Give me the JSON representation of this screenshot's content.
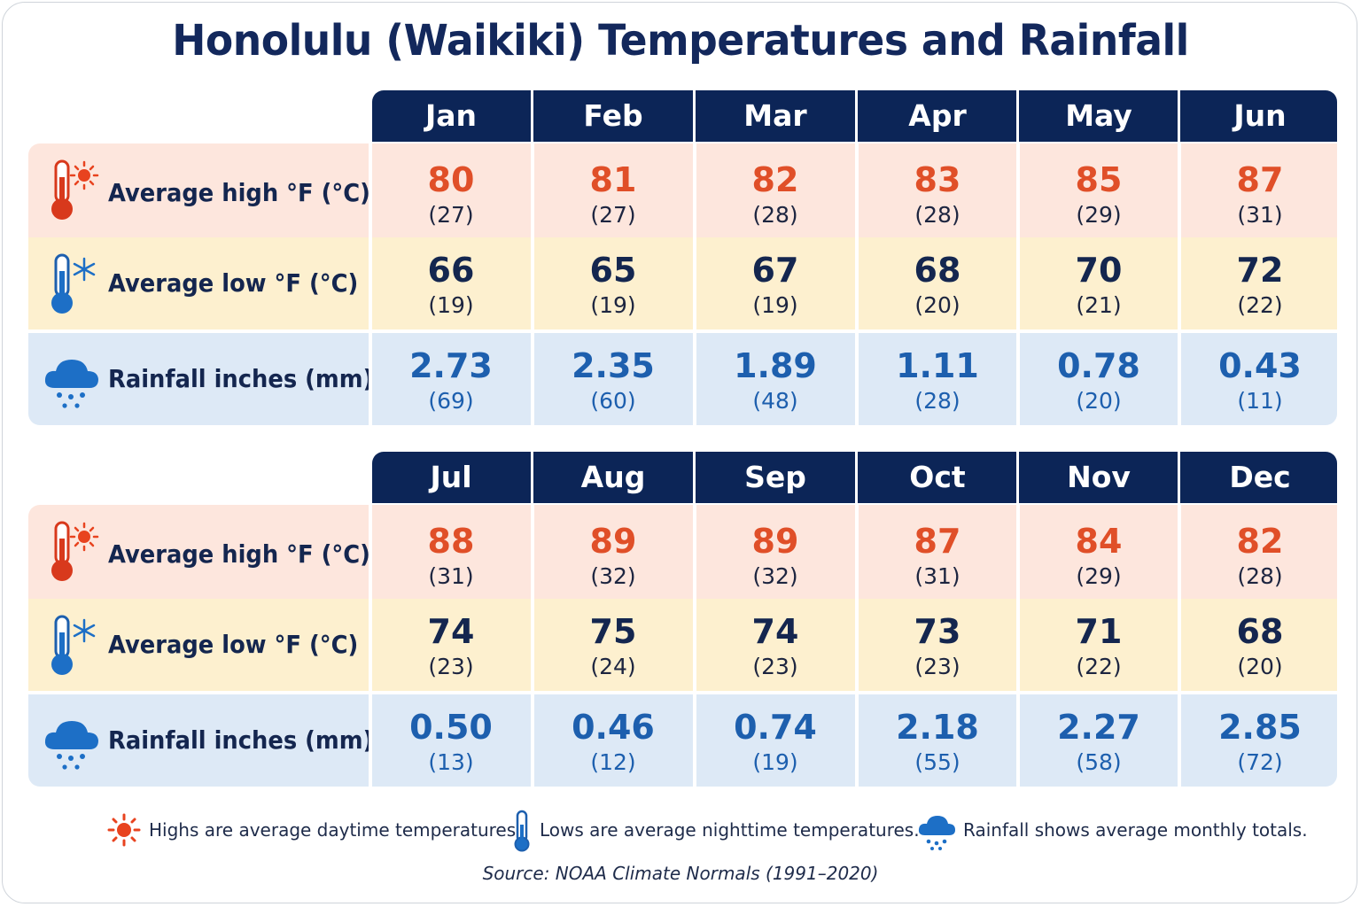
{
  "title": "Honolulu (Waikiki) Temperatures and Rainfall",
  "row_labels": {
    "high": "Average high °F (°C)",
    "low": "Average low °F (°C)",
    "rain": "Rainfall inches (mm)"
  },
  "icons": {
    "high": "thermometer-sun-icon",
    "low": "thermometer-snowflake-icon",
    "rain": "rain-cloud-icon"
  },
  "colors": {
    "header_bg": "#0c2557",
    "high_row": "#fde6dd",
    "low_row": "#fdf0cf",
    "rain_row": "#dde9f6",
    "high_value": "#e04f28",
    "rain_value": "#1d5fae",
    "title": "#13285c"
  },
  "tables": [
    {
      "months": [
        "Jan",
        "Feb",
        "Mar",
        "Apr",
        "May",
        "Jun"
      ],
      "high_f": [
        "80",
        "81",
        "82",
        "83",
        "85",
        "87"
      ],
      "high_c": [
        "(27)",
        "(27)",
        "(28)",
        "(28)",
        "(29)",
        "(31)"
      ],
      "low_f": [
        "66",
        "65",
        "67",
        "68",
        "70",
        "72"
      ],
      "low_c": [
        "(19)",
        "(19)",
        "(19)",
        "(20)",
        "(21)",
        "(22)"
      ],
      "rain_in": [
        "2.73",
        "2.35",
        "1.89",
        "1.11",
        "0.78",
        "0.43"
      ],
      "rain_mm": [
        "(69)",
        "(60)",
        "(48)",
        "(28)",
        "(20)",
        "(11)"
      ]
    },
    {
      "months": [
        "Jul",
        "Aug",
        "Sep",
        "Oct",
        "Nov",
        "Dec"
      ],
      "high_f": [
        "88",
        "89",
        "89",
        "87",
        "84",
        "82"
      ],
      "high_c": [
        "(31)",
        "(32)",
        "(32)",
        "(31)",
        "(29)",
        "(28)"
      ],
      "low_f": [
        "74",
        "75",
        "74",
        "73",
        "71",
        "68"
      ],
      "low_c": [
        "(23)",
        "(24)",
        "(23)",
        "(23)",
        "(22)",
        "(20)"
      ],
      "rain_in": [
        "0.50",
        "0.46",
        "0.74",
        "2.18",
        "2.27",
        "2.85"
      ],
      "rain_mm": [
        "(13)",
        "(12)",
        "(19)",
        "(55)",
        "(58)",
        "(72)"
      ]
    }
  ],
  "legend": {
    "high": "Highs are average daytime temperatures.",
    "low": "Lows are average nighttime temperatures.",
    "rain": "Rainfall shows average monthly totals."
  },
  "source": "Source: NOAA Climate Normals (1991–2020)"
}
